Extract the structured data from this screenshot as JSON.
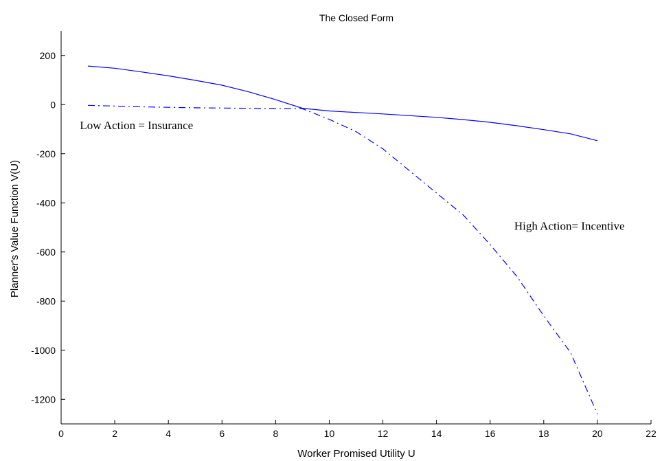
{
  "chart_data": {
    "type": "line",
    "title": "The Closed Form",
    "xlabel": "Worker Promised Utility U",
    "ylabel": "Planner's Value Function V(U)",
    "xlim": [
      0,
      22
    ],
    "ylim": [
      -1300,
      300
    ],
    "xticks": [
      0,
      2,
      4,
      6,
      8,
      10,
      12,
      14,
      16,
      18,
      20,
      22
    ],
    "yticks": [
      200,
      0,
      -200,
      -400,
      -600,
      -800,
      -1000,
      -1200
    ],
    "grid": false,
    "series": [
      {
        "style": "solid",
        "color": "#0000ff",
        "x": [
          1,
          2,
          3,
          4,
          5,
          6,
          7,
          8,
          9,
          10,
          11,
          12,
          13,
          14,
          15,
          16,
          17,
          18,
          19,
          20
        ],
        "y": [
          157,
          148,
          133,
          117,
          99,
          79,
          52,
          20,
          -15,
          -26,
          -32,
          -38,
          -45,
          -52,
          -61,
          -72,
          -86,
          -102,
          -119,
          -147
        ]
      },
      {
        "style": "dashdot",
        "color": "#0000ff",
        "x": [
          1,
          2,
          3,
          4,
          5,
          6,
          7,
          8,
          9,
          10,
          11,
          12,
          13,
          14,
          15,
          16,
          17,
          18,
          19,
          20
        ],
        "y": [
          -3,
          -6,
          -9,
          -11,
          -13,
          -14,
          -15,
          -16,
          -17,
          -60,
          -110,
          -180,
          -270,
          -360,
          -450,
          -570,
          -700,
          -860,
          -1010,
          -1260
        ]
      }
    ],
    "annotations": [
      {
        "text": "Low Action = Insurance",
        "x": 0.7,
        "y": -100
      },
      {
        "text": "High Action= Incentive",
        "x": 16.9,
        "y": -510
      }
    ]
  }
}
